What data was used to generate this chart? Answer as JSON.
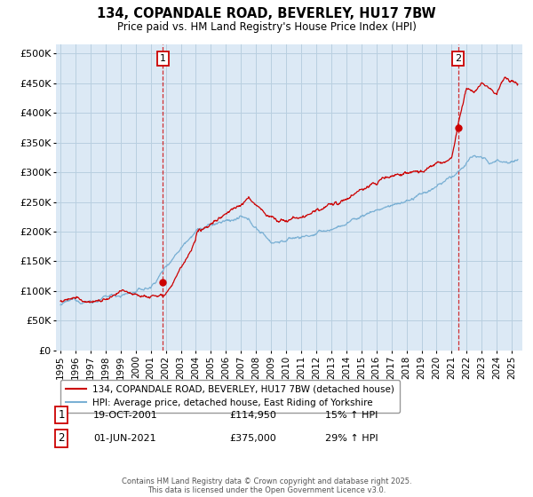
{
  "title": "134, COPANDALE ROAD, BEVERLEY, HU17 7BW",
  "subtitle": "Price paid vs. HM Land Registry's House Price Index (HPI)",
  "ytick_values": [
    0,
    50000,
    100000,
    150000,
    200000,
    250000,
    300000,
    350000,
    400000,
    450000,
    500000
  ],
  "ylabel_ticks": [
    "£0",
    "£50K",
    "£100K",
    "£150K",
    "£200K",
    "£250K",
    "£300K",
    "£350K",
    "£400K",
    "£450K",
    "£500K"
  ],
  "ylim": [
    0,
    515000
  ],
  "xlim_start": 1994.7,
  "xlim_end": 2025.7,
  "sale1_date": 2001.8,
  "sale1_price": 114950,
  "sale2_date": 2021.42,
  "sale2_price": 375000,
  "legend_line1": "134, COPANDALE ROAD, BEVERLEY, HU17 7BW (detached house)",
  "legend_line2": "HPI: Average price, detached house, East Riding of Yorkshire",
  "ann1_date": "19-OCT-2001",
  "ann1_price": "£114,950",
  "ann1_hpi": "15% ↑ HPI",
  "ann2_date": "01-JUN-2021",
  "ann2_price": "£375,000",
  "ann2_hpi": "29% ↑ HPI",
  "footer": "Contains HM Land Registry data © Crown copyright and database right 2025.\nThis data is licensed under the Open Government Licence v3.0.",
  "red_color": "#cc0000",
  "blue_color": "#7ab0d4",
  "bg_color": "#dce9f5",
  "grid_color": "#b8cfe0",
  "marker_top_y": 492000
}
